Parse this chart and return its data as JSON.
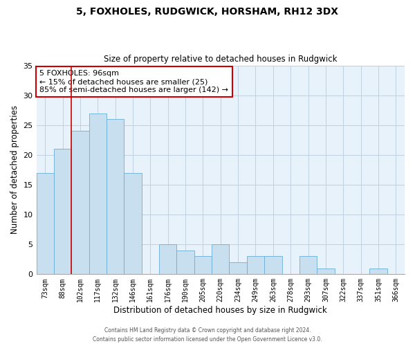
{
  "title": "5, FOXHOLES, RUDGWICK, HORSHAM, RH12 3DX",
  "subtitle": "Size of property relative to detached houses in Rudgwick",
  "xlabel": "Distribution of detached houses by size in Rudgwick",
  "ylabel": "Number of detached properties",
  "bar_color": "#c8dff0",
  "bar_edge_color": "#6aaed6",
  "plot_bg_color": "#e8f2fa",
  "fig_bg_color": "#ffffff",
  "grid_color": "#c0d0e0",
  "bin_labels": [
    "73sqm",
    "88sqm",
    "102sqm",
    "117sqm",
    "132sqm",
    "146sqm",
    "161sqm",
    "176sqm",
    "190sqm",
    "205sqm",
    "220sqm",
    "234sqm",
    "249sqm",
    "263sqm",
    "278sqm",
    "293sqm",
    "307sqm",
    "322sqm",
    "337sqm",
    "351sqm",
    "366sqm"
  ],
  "bar_heights": [
    17,
    21,
    24,
    27,
    26,
    17,
    0,
    5,
    4,
    3,
    5,
    2,
    3,
    3,
    0,
    3,
    1,
    0,
    0,
    1,
    0
  ],
  "ylim": [
    0,
    35
  ],
  "yticks": [
    0,
    5,
    10,
    15,
    20,
    25,
    30,
    35
  ],
  "vline_x_idx": 2,
  "vline_color": "#cc0000",
  "annotation_text": "5 FOXHOLES: 96sqm\n← 15% of detached houses are smaller (25)\n85% of semi-detached houses are larger (142) →",
  "annotation_box_color": "#ffffff",
  "annotation_box_edge_color": "#cc0000",
  "footer_line1": "Contains HM Land Registry data © Crown copyright and database right 2024.",
  "footer_line2": "Contains public sector information licensed under the Open Government Licence v3.0."
}
